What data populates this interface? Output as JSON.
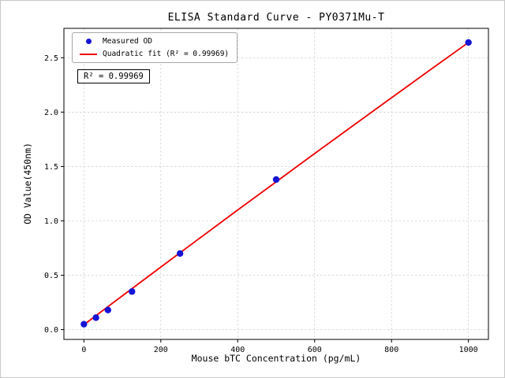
{
  "chart_data": {
    "type": "scatter",
    "title": "ELISA Standard Curve - PY0371Mu-T",
    "xlabel": "Mouse bTC Concentration (pg/mL)",
    "ylabel": "OD Value(450nm)",
    "xlim": [
      -52,
      1052
    ],
    "ylim": [
      -0.09,
      2.77
    ],
    "xticks": [
      0,
      200,
      400,
      600,
      800,
      1000
    ],
    "xtick_labels": [
      "0",
      "200",
      "400",
      "600",
      "800",
      "1000"
    ],
    "yticks": [
      0.0,
      0.5,
      1.0,
      1.5,
      2.0,
      2.5
    ],
    "ytick_labels": [
      "0.0",
      "0.5",
      "1.0",
      "1.5",
      "2.0",
      "2.5"
    ],
    "grid": true,
    "legend_position": "upper left",
    "annotation": "R² = 0.99969",
    "series": [
      {
        "name": "Measured OD",
        "type": "scatter",
        "color": "#1414d6",
        "x": [
          0,
          31.25,
          62.5,
          125,
          250,
          500,
          1000
        ],
        "y": [
          0.05,
          0.11,
          0.18,
          0.35,
          0.7,
          1.38,
          2.64
        ]
      },
      {
        "name": "Quadratic fit (R² = 0.99969)",
        "type": "line",
        "color": "#ee0000",
        "x": [
          0,
          100,
          200,
          300,
          400,
          500,
          600,
          700,
          800,
          900,
          1000
        ],
        "y": [
          0.045,
          0.311,
          0.575,
          0.838,
          1.1,
          1.359,
          1.619,
          1.876,
          2.132,
          2.387,
          2.64
        ]
      }
    ]
  }
}
